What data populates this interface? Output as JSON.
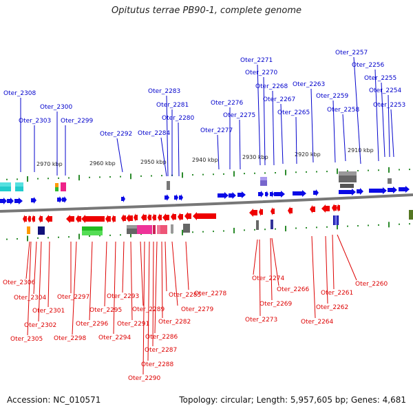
{
  "title": "Opitutus terrae PB90-1, complete genome",
  "accession_label": "Accession: NC_010571",
  "topology_label": "Topology: circular; Length: 5,957,605 bp; Genes: 4,681",
  "colors": {
    "top_label": "#0000cc",
    "bottom_label": "#dd0000",
    "backbone": "#777777",
    "tick": "#2a8a2a",
    "fwd_gene": "#0a0ae6",
    "rev_gene": "#ee0000"
  },
  "scale_labels": [
    "2970 kbp",
    "2960 kbp",
    "2950 kbp",
    "2940 kbp",
    "2930 kbp",
    "2920 kbp",
    "2910 kbp"
  ],
  "top_genes": [
    "Oter_2308",
    "Oter_2303",
    "Oter_2300",
    "Oter_2299",
    "Oter_2292",
    "Oter_2284",
    "Oter_2283",
    "Oter_2281",
    "Oter_2280",
    "Oter_2277",
    "Oter_2276",
    "Oter_2275",
    "Oter_2271",
    "Oter_2270",
    "Oter_2268",
    "Oter_2267",
    "Oter_2265",
    "Oter_2263",
    "Oter_2259",
    "Oter_2258",
    "Oter_2257",
    "Oter_2256",
    "Oter_2255",
    "Oter_2254",
    "Oter_2253"
  ],
  "bottom_genes": [
    "Oter_2306",
    "Oter_2304",
    "Oter_2302",
    "Oter_2305",
    "Oter_2301",
    "Oter_2297",
    "Oter_2298",
    "Oter_2296",
    "Oter_2295",
    "Oter_2294",
    "Oter_2293",
    "Oter_2291",
    "Oter_2289",
    "Oter_2290",
    "Oter_2288",
    "Oter_2287",
    "Oter_2286",
    "Oter_2282",
    "Oter_2285",
    "Oter_2279",
    "Oter_2278",
    "Oter_2274",
    "Oter_2273",
    "Oter_2269",
    "Oter_2266",
    "Oter_2264",
    "Oter_2262",
    "Oter_2261",
    "Oter_2260"
  ]
}
